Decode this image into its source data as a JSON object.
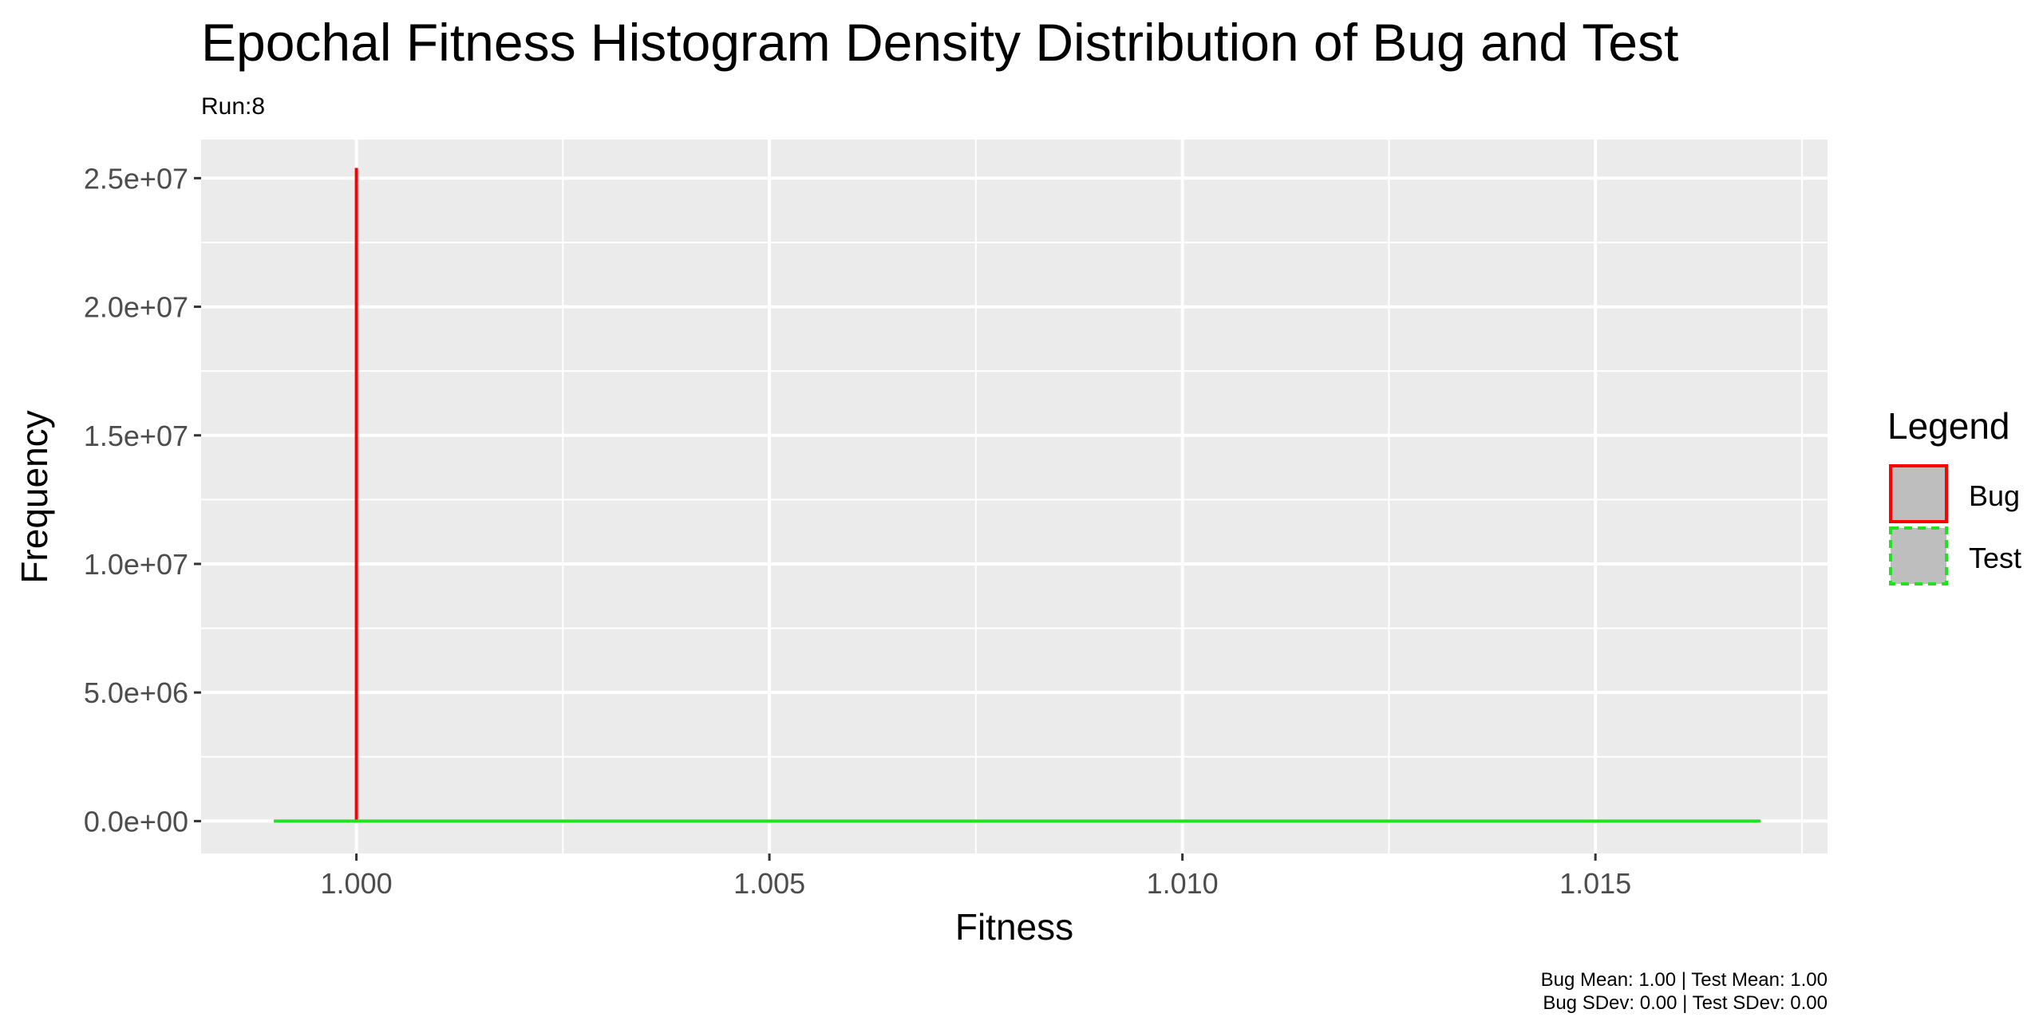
{
  "chart_data": {
    "type": "line",
    "title": "Epochal Fitness Histogram Density Distribution of Bug and Test",
    "subtitle": "Run:8",
    "xlabel": "Fitness",
    "ylabel": "Frequency",
    "xlim": [
      0.99812,
      1.01781
    ],
    "ylim": [
      -1260000,
      26500000
    ],
    "x_ticks": [
      1.0,
      1.005,
      1.01,
      1.015
    ],
    "x_tick_labels": [
      "1.000",
      "1.005",
      "1.010",
      "1.015"
    ],
    "y_ticks": [
      0,
      5000000,
      10000000,
      15000000,
      20000000,
      25000000
    ],
    "y_tick_labels": [
      "0.0e+00",
      "5.0e+06",
      "1.0e+07",
      "1.5e+07",
      "2.0e+07",
      "2.5e+07"
    ],
    "grid": true,
    "legend_title": "Legend",
    "legend_position": "right",
    "series": [
      {
        "name": "Bug",
        "color": "#ff0000",
        "line_style": "solid",
        "x": [
          1.0,
          1.0,
          1.0
        ],
        "y": [
          0,
          25400000,
          0
        ]
      },
      {
        "name": "Test",
        "color": "#22e022",
        "line_style": "dashed",
        "x": [
          0.999,
          1.017
        ],
        "y": [
          0,
          0
        ]
      }
    ],
    "caption_lines": [
      "Bug Mean: 1.00 | Test Mean: 1.00",
      "Bug SDev: 0.00 | Test SDev: 0.00"
    ]
  }
}
